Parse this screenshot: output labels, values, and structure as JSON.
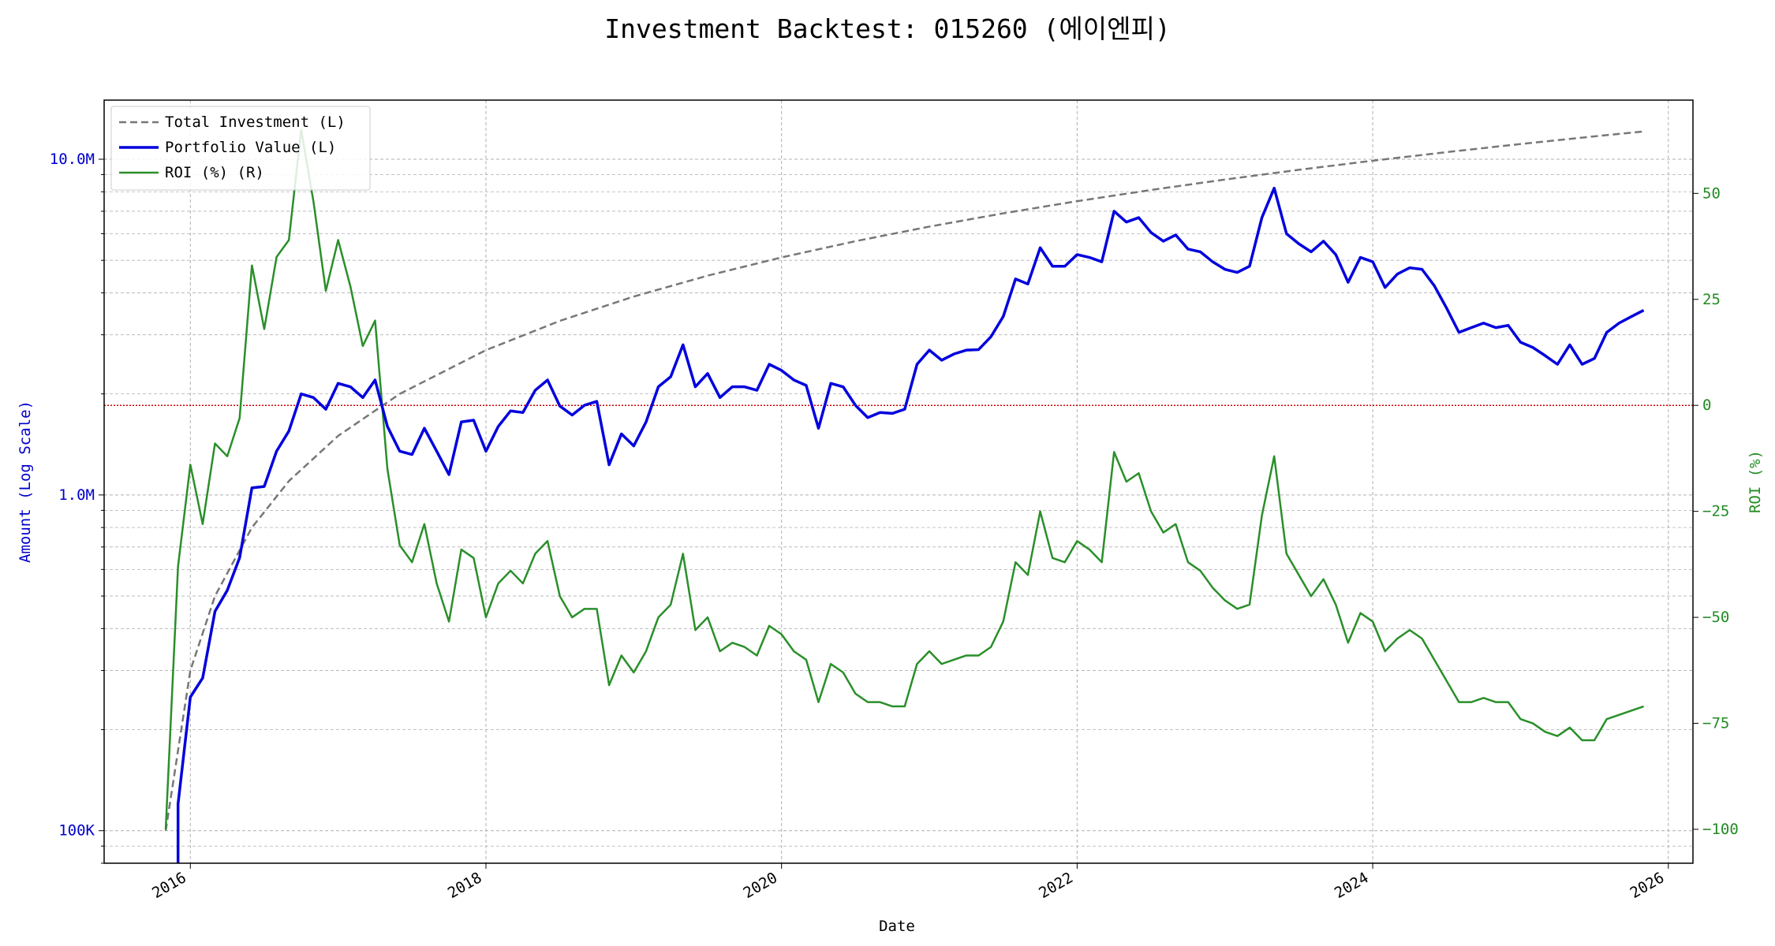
{
  "chart_data": {
    "type": "line",
    "title": "Investment Backtest: 015260 (에이엔피)",
    "xlabel": "Date",
    "ylabel_left": "Amount (Log Scale)",
    "ylabel_right": "ROI (%)",
    "x_ticks": [
      "2016",
      "2018",
      "2020",
      "2022",
      "2024",
      "2026"
    ],
    "y_left_scale": "log",
    "y_left_range": [
      80000,
      15000000
    ],
    "y_left_ticks": [
      {
        "value": 100000,
        "label": "100K"
      },
      {
        "value": 1000000,
        "label": "1.0M"
      },
      {
        "value": 10000000,
        "label": "10.0M"
      }
    ],
    "y_right_range": [
      -108,
      72
    ],
    "y_right_ticks": [
      -100,
      -75,
      -50,
      -25,
      0,
      25,
      50
    ],
    "x_range": [
      "2015-06",
      "2026-03"
    ],
    "zero_line_color": "#cc0000",
    "grid": true,
    "legend": {
      "position": "upper-left",
      "entries": [
        {
          "label": "Total Investment (L)",
          "color": "#777777",
          "style": "dashed"
        },
        {
          "label": "Portfolio Value (L)",
          "color": "#0000dd",
          "style": "solid"
        },
        {
          "label": "ROI (%) (R)",
          "color": "#2a8f2a",
          "style": "solid"
        }
      ]
    },
    "colors": {
      "investment": "#777777",
      "portfolio": "#0000dd",
      "roi": "#2a8f2a",
      "left_axis": "#0000cc",
      "right_axis": "#228b22"
    },
    "series": [
      {
        "name": "Total Investment (L)",
        "axis": "left",
        "points": [
          [
            "2015-11",
            100000
          ],
          [
            "2016-01",
            300000
          ],
          [
            "2016-03",
            500000
          ],
          [
            "2016-06",
            800000
          ],
          [
            "2016-09",
            1100000
          ],
          [
            "2017-01",
            1500000
          ],
          [
            "2017-06",
            2000000
          ],
          [
            "2018-01",
            2700000
          ],
          [
            "2018-07",
            3300000
          ],
          [
            "2019-01",
            3900000
          ],
          [
            "2019-07",
            4500000
          ],
          [
            "2020-01",
            5100000
          ],
          [
            "2020-07",
            5700000
          ],
          [
            "2021-01",
            6300000
          ],
          [
            "2021-07",
            6900000
          ],
          [
            "2022-01",
            7500000
          ],
          [
            "2022-07",
            8100000
          ],
          [
            "2023-01",
            8700000
          ],
          [
            "2023-07",
            9300000
          ],
          [
            "2024-01",
            9900000
          ],
          [
            "2024-07",
            10500000
          ],
          [
            "2025-01",
            11100000
          ],
          [
            "2025-07",
            11700000
          ],
          [
            "2025-11",
            12100000
          ]
        ]
      },
      {
        "name": "Portfolio Value (L)",
        "axis": "left",
        "points": [
          [
            "2015-12",
            75000
          ],
          [
            "2015-12",
            120000
          ],
          [
            "2016-01",
            250000
          ],
          [
            "2016-02",
            285000
          ],
          [
            "2016-03",
            450000
          ],
          [
            "2016-04",
            520000
          ],
          [
            "2016-05",
            650000
          ],
          [
            "2016-06",
            1050000
          ],
          [
            "2016-07",
            1060000
          ],
          [
            "2016-08",
            1350000
          ],
          [
            "2016-09",
            1550000
          ],
          [
            "2016-10",
            2000000
          ],
          [
            "2016-11",
            1950000
          ],
          [
            "2016-12",
            1800000
          ],
          [
            "2017-01",
            2150000
          ],
          [
            "2017-02",
            2100000
          ],
          [
            "2017-03",
            1950000
          ],
          [
            "2017-04",
            2200000
          ],
          [
            "2017-05",
            1600000
          ],
          [
            "2017-06",
            1350000
          ],
          [
            "2017-07",
            1320000
          ],
          [
            "2017-08",
            1580000
          ],
          [
            "2017-09",
            1350000
          ],
          [
            "2017-10",
            1150000
          ],
          [
            "2017-11",
            1650000
          ],
          [
            "2017-12",
            1670000
          ],
          [
            "2018-01",
            1350000
          ],
          [
            "2018-02",
            1600000
          ],
          [
            "2018-03",
            1780000
          ],
          [
            "2018-04",
            1760000
          ],
          [
            "2018-05",
            2050000
          ],
          [
            "2018-06",
            2200000
          ],
          [
            "2018-07",
            1840000
          ],
          [
            "2018-08",
            1730000
          ],
          [
            "2018-09",
            1850000
          ],
          [
            "2018-10",
            1900000
          ],
          [
            "2018-11",
            1230000
          ],
          [
            "2018-12",
            1520000
          ],
          [
            "2019-01",
            1400000
          ],
          [
            "2019-02",
            1650000
          ],
          [
            "2019-03",
            2100000
          ],
          [
            "2019-04",
            2250000
          ],
          [
            "2019-05",
            2800000
          ],
          [
            "2019-06",
            2100000
          ],
          [
            "2019-07",
            2300000
          ],
          [
            "2019-08",
            1950000
          ],
          [
            "2019-09",
            2100000
          ],
          [
            "2019-10",
            2100000
          ],
          [
            "2019-11",
            2050000
          ],
          [
            "2019-12",
            2450000
          ],
          [
            "2020-01",
            2350000
          ],
          [
            "2020-02",
            2200000
          ],
          [
            "2020-03",
            2120000
          ],
          [
            "2020-04",
            1580000
          ],
          [
            "2020-05",
            2150000
          ],
          [
            "2020-06",
            2100000
          ],
          [
            "2020-07",
            1850000
          ],
          [
            "2020-08",
            1700000
          ],
          [
            "2020-09",
            1760000
          ],
          [
            "2020-10",
            1750000
          ],
          [
            "2020-11",
            1800000
          ],
          [
            "2020-12",
            2450000
          ],
          [
            "2021-01",
            2700000
          ],
          [
            "2021-02",
            2520000
          ],
          [
            "2021-03",
            2630000
          ],
          [
            "2021-04",
            2700000
          ],
          [
            "2021-05",
            2710000
          ],
          [
            "2021-06",
            2960000
          ],
          [
            "2021-07",
            3400000
          ],
          [
            "2021-08",
            4400000
          ],
          [
            "2021-09",
            4250000
          ],
          [
            "2021-10",
            5450000
          ],
          [
            "2021-11",
            4800000
          ],
          [
            "2021-12",
            4800000
          ],
          [
            "2022-01",
            5200000
          ],
          [
            "2022-02",
            5100000
          ],
          [
            "2022-03",
            4950000
          ],
          [
            "2022-04",
            7000000
          ],
          [
            "2022-05",
            6500000
          ],
          [
            "2022-06",
            6700000
          ],
          [
            "2022-07",
            6050000
          ],
          [
            "2022-08",
            5700000
          ],
          [
            "2022-09",
            5950000
          ],
          [
            "2022-10",
            5400000
          ],
          [
            "2022-11",
            5300000
          ],
          [
            "2022-12",
            4950000
          ],
          [
            "2023-01",
            4700000
          ],
          [
            "2023-02",
            4600000
          ],
          [
            "2023-03",
            4800000
          ],
          [
            "2023-04",
            6700000
          ],
          [
            "2023-05",
            8200000
          ],
          [
            "2023-06",
            6000000
          ],
          [
            "2023-07",
            5600000
          ],
          [
            "2023-08",
            5300000
          ],
          [
            "2023-09",
            5700000
          ],
          [
            "2023-10",
            5200000
          ],
          [
            "2023-11",
            4300000
          ],
          [
            "2023-12",
            5100000
          ],
          [
            "2024-01",
            4950000
          ],
          [
            "2024-02",
            4150000
          ],
          [
            "2024-03",
            4550000
          ],
          [
            "2024-04",
            4750000
          ],
          [
            "2024-05",
            4700000
          ],
          [
            "2024-06",
            4200000
          ],
          [
            "2024-07",
            3600000
          ],
          [
            "2024-08",
            3050000
          ],
          [
            "2024-09",
            3150000
          ],
          [
            "2024-10",
            3250000
          ],
          [
            "2024-11",
            3150000
          ],
          [
            "2024-12",
            3200000
          ],
          [
            "2025-01",
            2850000
          ],
          [
            "2025-02",
            2750000
          ],
          [
            "2025-03",
            2600000
          ],
          [
            "2025-04",
            2450000
          ],
          [
            "2025-05",
            2800000
          ],
          [
            "2025-06",
            2450000
          ],
          [
            "2025-07",
            2550000
          ],
          [
            "2025-08",
            3050000
          ],
          [
            "2025-09",
            3250000
          ],
          [
            "2025-10",
            3400000
          ],
          [
            "2025-11",
            3550000
          ]
        ]
      },
      {
        "name": "ROI (%) (R)",
        "axis": "right",
        "points": [
          [
            "2015-11",
            -100
          ],
          [
            "2015-12",
            -38
          ],
          [
            "2016-01",
            -14
          ],
          [
            "2016-02",
            -28
          ],
          [
            "2016-03",
            -9
          ],
          [
            "2016-04",
            -12
          ],
          [
            "2016-05",
            -3
          ],
          [
            "2016-06",
            33
          ],
          [
            "2016-07",
            18
          ],
          [
            "2016-08",
            35
          ],
          [
            "2016-09",
            39
          ],
          [
            "2016-10",
            65
          ],
          [
            "2016-11",
            48
          ],
          [
            "2016-12",
            27
          ],
          [
            "2017-01",
            39
          ],
          [
            "2017-02",
            28
          ],
          [
            "2017-03",
            14
          ],
          [
            "2017-04",
            20
          ],
          [
            "2017-05",
            -15
          ],
          [
            "2017-06",
            -33
          ],
          [
            "2017-07",
            -37
          ],
          [
            "2017-08",
            -28
          ],
          [
            "2017-09",
            -42
          ],
          [
            "2017-10",
            -51
          ],
          [
            "2017-11",
            -34
          ],
          [
            "2017-12",
            -36
          ],
          [
            "2018-01",
            -50
          ],
          [
            "2018-02",
            -42
          ],
          [
            "2018-03",
            -39
          ],
          [
            "2018-04",
            -42
          ],
          [
            "2018-05",
            -35
          ],
          [
            "2018-06",
            -32
          ],
          [
            "2018-07",
            -45
          ],
          [
            "2018-08",
            -50
          ],
          [
            "2018-09",
            -48
          ],
          [
            "2018-10",
            -48
          ],
          [
            "2018-11",
            -66
          ],
          [
            "2018-12",
            -59
          ],
          [
            "2019-01",
            -63
          ],
          [
            "2019-02",
            -58
          ],
          [
            "2019-03",
            -50
          ],
          [
            "2019-04",
            -47
          ],
          [
            "2019-05",
            -35
          ],
          [
            "2019-06",
            -53
          ],
          [
            "2019-07",
            -50
          ],
          [
            "2019-08",
            -58
          ],
          [
            "2019-09",
            -56
          ],
          [
            "2019-10",
            -57
          ],
          [
            "2019-11",
            -59
          ],
          [
            "2019-12",
            -52
          ],
          [
            "2020-01",
            -54
          ],
          [
            "2020-02",
            -58
          ],
          [
            "2020-03",
            -60
          ],
          [
            "2020-04",
            -70
          ],
          [
            "2020-05",
            -61
          ],
          [
            "2020-06",
            -63
          ],
          [
            "2020-07",
            -68
          ],
          [
            "2020-08",
            -70
          ],
          [
            "2020-09",
            -70
          ],
          [
            "2020-10",
            -71
          ],
          [
            "2020-11",
            -71
          ],
          [
            "2020-12",
            -61
          ],
          [
            "2021-01",
            -58
          ],
          [
            "2021-02",
            -61
          ],
          [
            "2021-03",
            -60
          ],
          [
            "2021-04",
            -59
          ],
          [
            "2021-05",
            -59
          ],
          [
            "2021-06",
            -57
          ],
          [
            "2021-07",
            -51
          ],
          [
            "2021-08",
            -37
          ],
          [
            "2021-09",
            -40
          ],
          [
            "2021-10",
            -25
          ],
          [
            "2021-11",
            -36
          ],
          [
            "2021-12",
            -37
          ],
          [
            "2022-01",
            -32
          ],
          [
            "2022-02",
            -34
          ],
          [
            "2022-03",
            -37
          ],
          [
            "2022-04",
            -11
          ],
          [
            "2022-05",
            -18
          ],
          [
            "2022-06",
            -16
          ],
          [
            "2022-07",
            -25
          ],
          [
            "2022-08",
            -30
          ],
          [
            "2022-09",
            -28
          ],
          [
            "2022-10",
            -37
          ],
          [
            "2022-11",
            -39
          ],
          [
            "2022-12",
            -43
          ],
          [
            "2023-01",
            -46
          ],
          [
            "2023-02",
            -48
          ],
          [
            "2023-03",
            -47
          ],
          [
            "2023-04",
            -26
          ],
          [
            "2023-05",
            -12
          ],
          [
            "2023-06",
            -35
          ],
          [
            "2023-07",
            -40
          ],
          [
            "2023-08",
            -45
          ],
          [
            "2023-09",
            -41
          ],
          [
            "2023-10",
            -47
          ],
          [
            "2023-11",
            -56
          ],
          [
            "2023-12",
            -49
          ],
          [
            "2024-01",
            -51
          ],
          [
            "2024-02",
            -58
          ],
          [
            "2024-03",
            -55
          ],
          [
            "2024-04",
            -53
          ],
          [
            "2024-05",
            -55
          ],
          [
            "2024-06",
            -60
          ],
          [
            "2024-07",
            -65
          ],
          [
            "2024-08",
            -70
          ],
          [
            "2024-09",
            -70
          ],
          [
            "2024-10",
            -69
          ],
          [
            "2024-11",
            -70
          ],
          [
            "2024-12",
            -70
          ],
          [
            "2025-01",
            -74
          ],
          [
            "2025-02",
            -75
          ],
          [
            "2025-03",
            -77
          ],
          [
            "2025-04",
            -78
          ],
          [
            "2025-05",
            -76
          ],
          [
            "2025-06",
            -79
          ],
          [
            "2025-07",
            -79
          ],
          [
            "2025-08",
            -74
          ],
          [
            "2025-09",
            -73
          ],
          [
            "2025-10",
            -72
          ],
          [
            "2025-11",
            -71
          ]
        ]
      }
    ]
  }
}
